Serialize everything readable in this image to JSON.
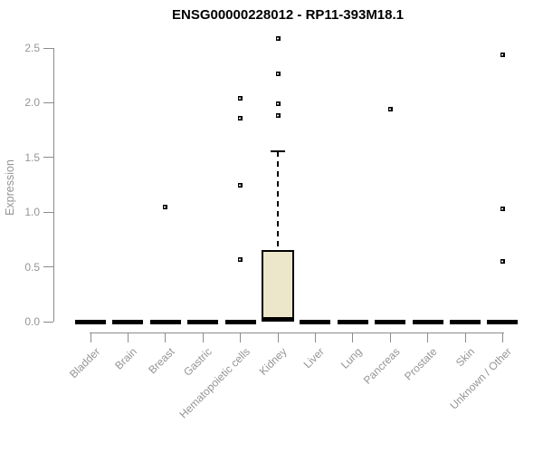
{
  "chart_data": {
    "type": "boxplot",
    "title": "ENSG00000228012 - RP11-393M18.1",
    "ylabel": "Expression",
    "xlabel": "",
    "y_axis": {
      "ticks": [
        "0.0",
        "0.5",
        "1.0",
        "1.5",
        "2.0",
        "2.5"
      ],
      "range": [
        0,
        2.5
      ],
      "grid": false
    },
    "categories": [
      "Bladder",
      "Brain",
      "Breast",
      "Gastric",
      "Hematopoietic cells",
      "Kidney",
      "Liver",
      "Lung",
      "Pancreas",
      "Prostate",
      "Skin",
      "Unknown / Other"
    ],
    "series": [
      {
        "label": "Bladder",
        "median": 0.0,
        "q1": 0.0,
        "q3": 0.0,
        "whisker_low": 0.0,
        "whisker_high": 0.0,
        "outliers": []
      },
      {
        "label": "Brain",
        "median": 0.0,
        "q1": 0.0,
        "q3": 0.0,
        "whisker_low": 0.0,
        "whisker_high": 0.0,
        "outliers": []
      },
      {
        "label": "Breast",
        "median": 0.0,
        "q1": 0.0,
        "q3": 0.0,
        "whisker_low": 0.0,
        "whisker_high": 0.0,
        "outliers": [
          1.05
        ]
      },
      {
        "label": "Gastric",
        "median": 0.0,
        "q1": 0.0,
        "q3": 0.0,
        "whisker_low": 0.0,
        "whisker_high": 0.0,
        "outliers": []
      },
      {
        "label": "Hematopoietic cells",
        "median": 0.0,
        "q1": 0.0,
        "q3": 0.0,
        "whisker_low": 0.0,
        "whisker_high": 0.0,
        "outliers": [
          2.04,
          1.86,
          1.25,
          0.57
        ]
      },
      {
        "label": "Kidney",
        "median": 0.02,
        "q1": 0.0,
        "q3": 0.65,
        "whisker_low": 0.0,
        "whisker_high": 1.56,
        "outliers": [
          2.59,
          2.26,
          1.99,
          1.88
        ]
      },
      {
        "label": "Liver",
        "median": 0.0,
        "q1": 0.0,
        "q3": 0.0,
        "whisker_low": 0.0,
        "whisker_high": 0.0,
        "outliers": []
      },
      {
        "label": "Lung",
        "median": 0.0,
        "q1": 0.0,
        "q3": 0.0,
        "whisker_low": 0.0,
        "whisker_high": 0.0,
        "outliers": []
      },
      {
        "label": "Pancreas",
        "median": 0.0,
        "q1": 0.0,
        "q3": 0.0,
        "whisker_low": 0.0,
        "whisker_high": 0.0,
        "outliers": [
          1.94
        ]
      },
      {
        "label": "Prostate",
        "median": 0.0,
        "q1": 0.0,
        "q3": 0.0,
        "whisker_low": 0.0,
        "whisker_high": 0.0,
        "outliers": []
      },
      {
        "label": "Skin",
        "median": 0.0,
        "q1": 0.0,
        "q3": 0.0,
        "whisker_low": 0.0,
        "whisker_high": 0.0,
        "outliers": []
      },
      {
        "label": "Unknown / Other",
        "median": 0.0,
        "q1": 0.0,
        "q3": 0.0,
        "whisker_low": 0.0,
        "whisker_high": 0.0,
        "outliers": [
          2.44,
          1.03,
          0.55
        ]
      }
    ],
    "legend": "none",
    "colors": {
      "box_fill": "#ece6cb",
      "box_border": "#000000",
      "outlier": "#000000",
      "axis_line": "#8c8c8c",
      "tick_text": "#959595",
      "title_text": "#000000"
    }
  }
}
